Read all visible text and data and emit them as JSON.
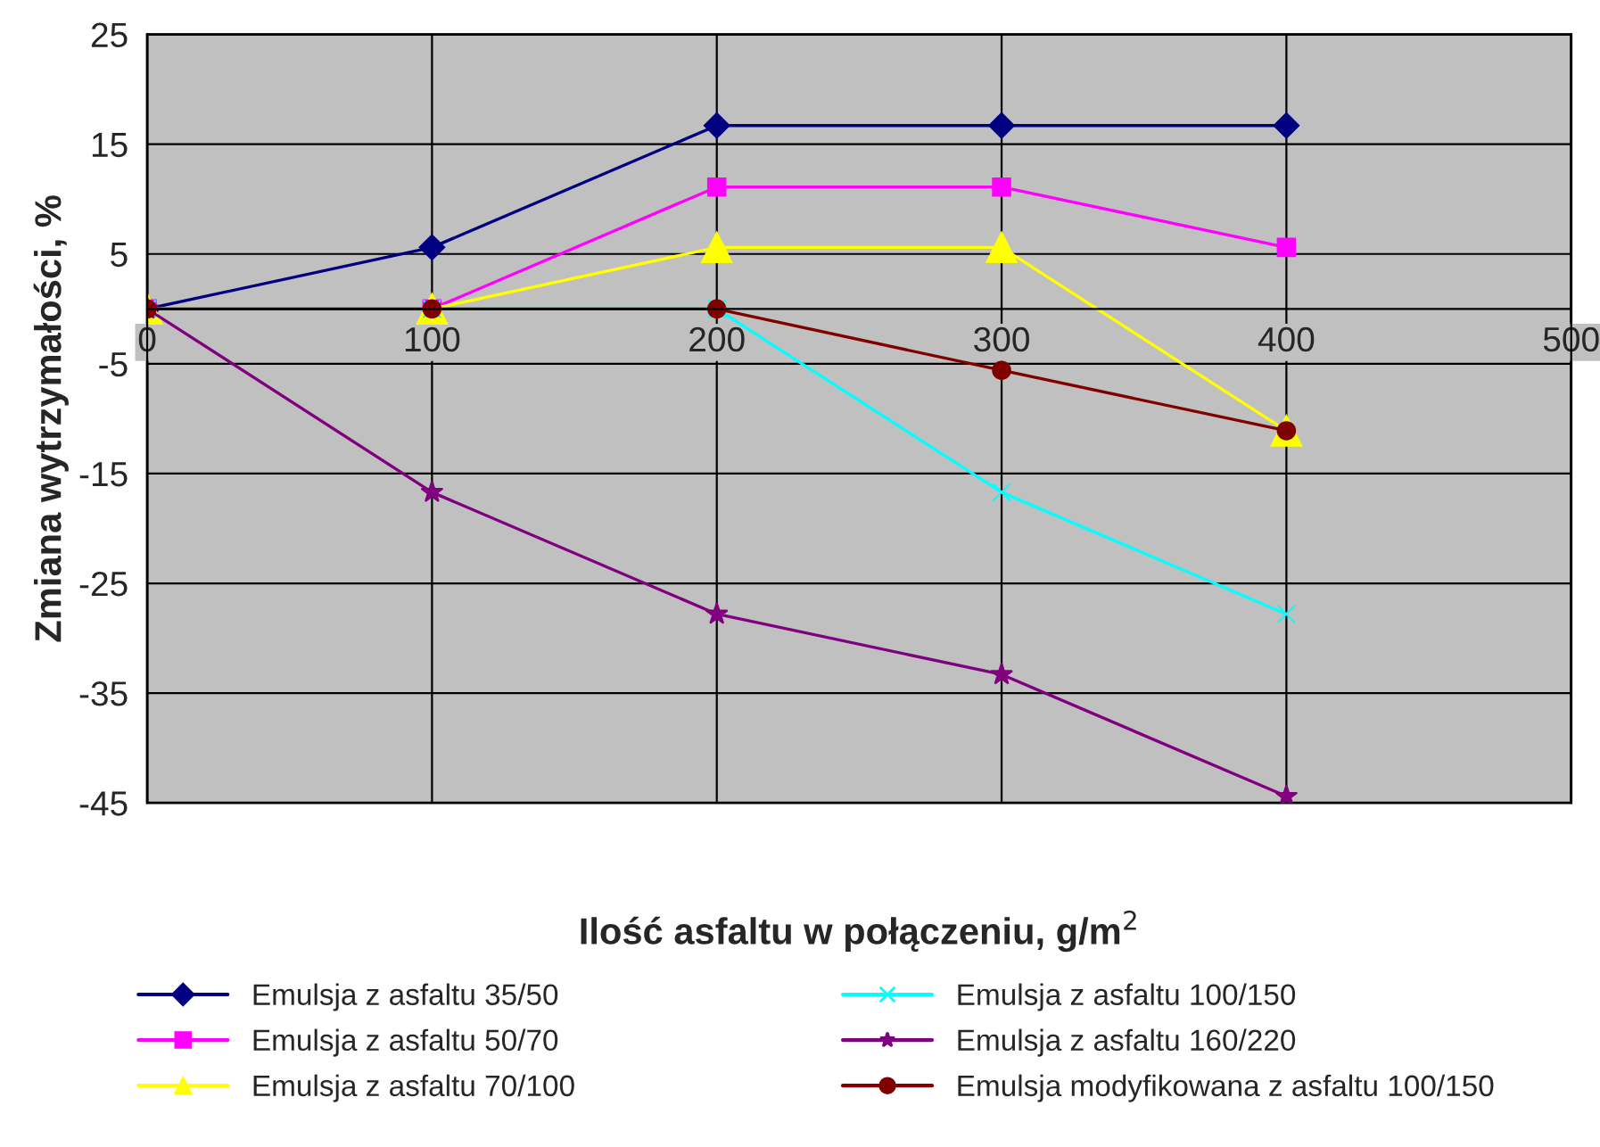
{
  "chart_data": {
    "type": "line",
    "xlabel": "Ilość asfaltu w połączeniu, g/m$^{2}$",
    "ylabel": "Zmiana wytrzymałości, %",
    "x": [
      0,
      100,
      200,
      300,
      400
    ],
    "xlim": [
      0,
      500
    ],
    "xticks": [
      0,
      100,
      200,
      300,
      400,
      500
    ],
    "ylim": [
      -45,
      25
    ],
    "yticks": [
      -45,
      -35,
      -25,
      -15,
      -5,
      5,
      15,
      25
    ],
    "grid": true,
    "legend": "bottom",
    "line_style": "solid",
    "series": [
      {
        "name": "Emulsja z asfaltu 35/50",
        "color": "#000080",
        "marker": "diamond",
        "values": [
          0,
          5.6,
          16.7,
          16.7,
          16.7
        ]
      },
      {
        "name": "Emulsja z asfaltu 50/70",
        "color": "#ff00ff",
        "marker": "square",
        "values": [
          0,
          0,
          11.1,
          11.1,
          5.6
        ]
      },
      {
        "name": "Emulsja z asfaltu 70/100",
        "color": "#ffff00",
        "marker": "triangle",
        "values": [
          0,
          0,
          5.6,
          5.6,
          -11.1
        ]
      },
      {
        "name": "Emulsja z asfaltu 100/150",
        "color": "#00ffff",
        "marker": "cross",
        "values": [
          0,
          0,
          0,
          -16.7,
          -27.8
        ]
      },
      {
        "name": "Emulsja z asfaltu 160/220",
        "color": "#800080",
        "marker": "star",
        "values": [
          0,
          -16.7,
          -27.8,
          -33.3,
          -44.4
        ]
      },
      {
        "name": "Emulsja modyfikowana z asfaltu 100/150",
        "color": "#800000",
        "marker": "circle",
        "values": [
          0,
          0,
          0,
          -5.6,
          -11.1
        ]
      }
    ]
  }
}
